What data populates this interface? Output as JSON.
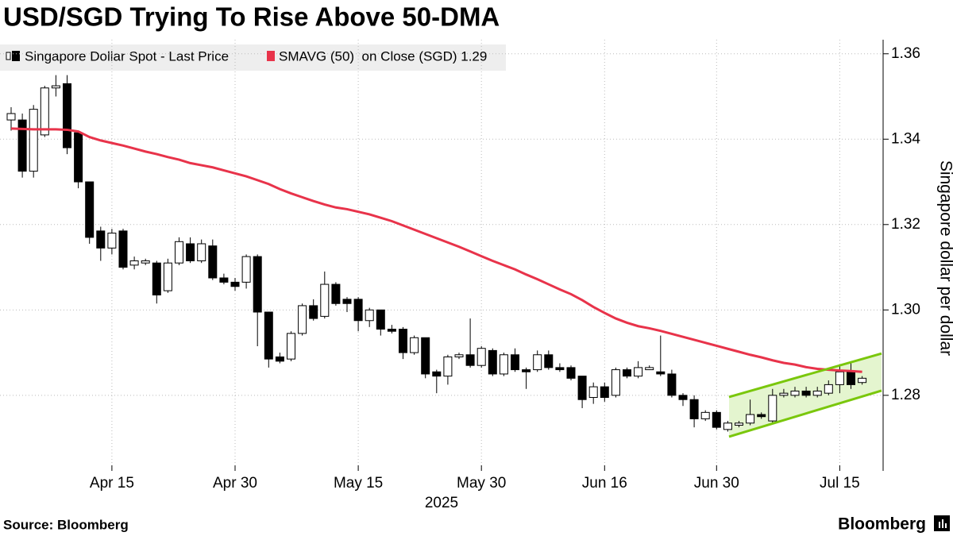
{
  "chart_data": {
    "type": "candlestick",
    "title": "USD/SGD Trying To Rise Above 50-DMA",
    "y_axis_label": "Singapore dollar per dollar",
    "x_axis_year": "2025",
    "source": "Source: Bloomberg",
    "brand": "Bloomberg",
    "categories": [
      null,
      null,
      null,
      null,
      null,
      null,
      null,
      null,
      null,
      "Apr 15",
      null,
      null,
      null,
      null,
      null,
      null,
      null,
      null,
      null,
      null,
      "Apr 30",
      null,
      null,
      null,
      null,
      null,
      null,
      null,
      null,
      null,
      null,
      "May 15",
      null,
      null,
      null,
      null,
      null,
      null,
      null,
      null,
      null,
      null,
      "May 30",
      null,
      null,
      null,
      null,
      null,
      null,
      null,
      null,
      null,
      null,
      "Jun 16",
      null,
      null,
      null,
      null,
      null,
      null,
      null,
      null,
      null,
      "Jun 30",
      null,
      null,
      null,
      null,
      null,
      null,
      null,
      null,
      null,
      null,
      "Jul 15",
      null,
      null
    ],
    "series": [
      {
        "name": "Singapore Dollar Spot - Last Price",
        "up_color": "#ffffff",
        "down_color": "#000000",
        "open": [
          1.3445,
          1.3445,
          1.3325,
          1.341,
          1.352,
          1.353,
          1.3415,
          1.33,
          1.3185,
          1.3145,
          1.3185,
          1.3105,
          1.311,
          1.311,
          1.3045,
          1.311,
          1.3155,
          1.3115,
          1.315,
          1.3075,
          1.3065,
          1.3065,
          1.3125,
          1.2995,
          1.289,
          1.2885,
          1.2945,
          1.301,
          1.2985,
          1.306,
          1.3025,
          1.3025,
          1.2975,
          1.3,
          1.2955,
          1.2955,
          1.29,
          1.2935,
          1.2855,
          1.2845,
          1.289,
          1.2895,
          1.287,
          1.2905,
          1.285,
          1.2895,
          1.286,
          1.286,
          1.2895,
          1.2865,
          1.2865,
          1.2845,
          1.2795,
          1.282,
          1.28,
          1.286,
          1.2845,
          1.286,
          1.2855,
          1.285,
          1.28,
          1.279,
          1.2745,
          1.276,
          1.272,
          1.273,
          1.2735,
          1.2755,
          1.274,
          1.28,
          1.28,
          1.281,
          1.28,
          1.2805,
          1.2825,
          1.2855,
          1.283
        ],
        "high": [
          1.3475,
          1.346,
          1.348,
          1.3525,
          1.355,
          1.355,
          1.342,
          1.33,
          1.3195,
          1.319,
          1.319,
          1.3125,
          1.312,
          1.3115,
          1.312,
          1.317,
          1.317,
          1.3165,
          1.3165,
          1.3085,
          1.3075,
          1.313,
          1.313,
          1.2995,
          1.29,
          1.295,
          1.3015,
          1.3025,
          1.309,
          1.3065,
          1.303,
          1.303,
          1.3005,
          1.3,
          1.2965,
          1.296,
          1.294,
          1.2935,
          1.286,
          1.2895,
          1.29,
          1.298,
          1.2915,
          1.291,
          1.29,
          1.291,
          1.2865,
          1.2905,
          1.2905,
          1.2875,
          1.287,
          1.2845,
          1.283,
          1.283,
          1.2865,
          1.2865,
          1.288,
          1.287,
          1.294,
          1.286,
          1.2805,
          1.28,
          1.2765,
          1.2765,
          1.274,
          1.274,
          1.279,
          1.276,
          1.2815,
          1.2815,
          1.282,
          1.282,
          1.282,
          1.2835,
          1.287,
          1.2875,
          1.2845
        ],
        "low": [
          1.342,
          1.331,
          1.331,
          1.3405,
          1.35,
          1.3365,
          1.3285,
          1.3155,
          1.3115,
          1.313,
          1.3095,
          1.3095,
          1.3105,
          1.3015,
          1.304,
          1.3105,
          1.311,
          1.311,
          1.307,
          1.306,
          1.3045,
          1.305,
          1.2915,
          1.2865,
          1.2875,
          1.288,
          1.294,
          1.2975,
          1.298,
          1.301,
          1.2995,
          1.295,
          1.296,
          1.294,
          1.2945,
          1.2885,
          1.2895,
          1.284,
          1.2805,
          1.2825,
          1.2885,
          1.2865,
          1.2865,
          1.2845,
          1.2845,
          1.2855,
          1.2815,
          1.2855,
          1.286,
          1.2855,
          1.2835,
          1.277,
          1.278,
          1.2785,
          1.2795,
          1.284,
          1.284,
          1.286,
          1.2845,
          1.2795,
          1.2775,
          1.2725,
          1.274,
          1.272,
          1.2715,
          1.2725,
          1.273,
          1.2745,
          1.2735,
          1.2795,
          1.2795,
          1.2795,
          1.2795,
          1.28,
          1.2805,
          1.2815,
          1.2825
        ],
        "close": [
          1.346,
          1.3325,
          1.347,
          1.352,
          1.3525,
          1.338,
          1.33,
          1.317,
          1.3145,
          1.318,
          1.31,
          1.3115,
          1.3115,
          1.3035,
          1.311,
          1.316,
          1.3115,
          1.3155,
          1.3075,
          1.3065,
          1.3055,
          1.3125,
          1.2995,
          1.2885,
          1.288,
          1.2945,
          1.301,
          1.298,
          1.306,
          1.3015,
          1.3015,
          1.2975,
          1.3,
          1.2955,
          1.295,
          1.29,
          1.2935,
          1.285,
          1.2845,
          1.289,
          1.2895,
          1.287,
          1.291,
          1.285,
          1.2895,
          1.286,
          1.2855,
          1.2895,
          1.2865,
          1.286,
          1.284,
          1.279,
          1.282,
          1.2795,
          1.286,
          1.2845,
          1.2865,
          1.2865,
          1.285,
          1.28,
          1.279,
          1.2745,
          1.276,
          1.2725,
          1.2735,
          1.2735,
          1.2755,
          1.275,
          1.28,
          1.2805,
          1.281,
          1.28,
          1.281,
          1.2825,
          1.2855,
          1.2825,
          1.284
        ]
      },
      {
        "name": "SMAVG (50)  on Close (SGD) 1.29",
        "color": "#e8334a",
        "values": [
          1.3425,
          1.3424,
          1.3423,
          1.3423,
          1.3423,
          1.3422,
          1.3418,
          1.3405,
          1.3397,
          1.3391,
          1.3385,
          1.3378,
          1.3371,
          1.3365,
          1.3358,
          1.3352,
          1.3344,
          1.3339,
          1.3334,
          1.3327,
          1.332,
          1.3313,
          1.3304,
          1.3295,
          1.3283,
          1.3273,
          1.3264,
          1.3255,
          1.3247,
          1.324,
          1.3236,
          1.323,
          1.3224,
          1.3216,
          1.3208,
          1.3198,
          1.3188,
          1.3178,
          1.3168,
          1.3158,
          1.3148,
          1.3137,
          1.3126,
          1.3115,
          1.3105,
          1.3095,
          1.3083,
          1.3072,
          1.306,
          1.3048,
          1.3037,
          1.3023,
          1.3007,
          1.2993,
          1.298,
          1.297,
          1.2962,
          1.2957,
          1.2951,
          1.2944,
          1.2937,
          1.293,
          1.2923,
          1.2916,
          1.2909,
          1.2902,
          1.2895,
          1.2889,
          1.2882,
          1.2876,
          1.2872,
          1.2866,
          1.2862,
          1.286,
          1.2858,
          1.2857,
          1.2855
        ]
      }
    ],
    "channel": {
      "color": "#7ac70c",
      "fill": "#e4f5cf",
      "upper": [
        1.2796,
        1.2898
      ],
      "lower": [
        1.2703,
        1.2811
      ]
    },
    "ylim": [
      1.2623,
      1.3633
    ],
    "yticks": [
      1.28,
      {
        "value": 1.3,
        "label": "1.30"
      },
      1.32,
      1.34,
      1.36
    ],
    "grid": true
  }
}
